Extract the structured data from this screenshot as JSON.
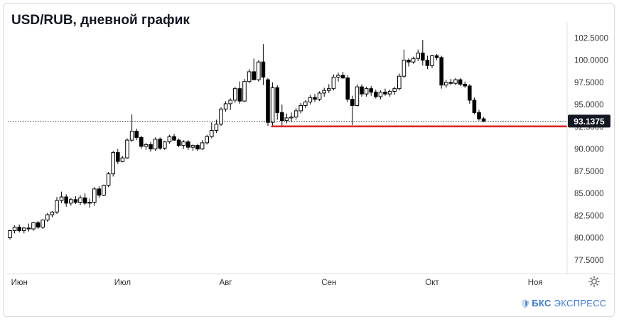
{
  "header": {
    "title": "USD/RUB, дневной график"
  },
  "watermark": {
    "icon": "bks-shield-icon",
    "brand": "БКС",
    "product": "ЭКСПРЕСС",
    "color": "#3d7bd6"
  },
  "settings": {
    "icon": "gear-icon"
  },
  "chart_data": {
    "type": "candlestick",
    "title": "USD/RUB, дневной график",
    "ylim": [
      76.2,
      103.9
    ],
    "y_ticks": [
      "102.5000",
      "100.0000",
      "97.5000",
      "95.0000",
      "92.5000",
      "90.0000",
      "87.5000",
      "85.0000",
      "82.5000",
      "80.0000",
      "77.5000"
    ],
    "y_tick_values": [
      102.5,
      100.0,
      97.5,
      95.0,
      92.5,
      90.0,
      87.5,
      85.0,
      82.5,
      80.0,
      77.5
    ],
    "x_ticks": [
      {
        "label": "Июн",
        "index": 2
      },
      {
        "label": "Июл",
        "index": 24
      },
      {
        "label": "Авг",
        "index": 46
      },
      {
        "label": "Сен",
        "index": 68
      },
      {
        "label": "Окт",
        "index": 90
      },
      {
        "label": "Ноя",
        "index": 112
      }
    ],
    "current_price": 93.1375,
    "current_price_label": "93.1375",
    "support_level": 92.55,
    "support_start_index": 56,
    "colors": {
      "up": "#ffffff",
      "down": "#000000",
      "wick": "#000000",
      "support": "#d9262c",
      "price_tag": "#131722",
      "grid": "#e6e6e6"
    },
    "candles": [
      [
        80.0,
        80.9,
        79.8,
        80.8
      ],
      [
        80.8,
        81.4,
        80.5,
        81.2
      ],
      [
        81.2,
        81.5,
        80.6,
        80.8
      ],
      [
        80.8,
        81.2,
        80.5,
        81.1
      ],
      [
        81.1,
        81.6,
        80.7,
        81.0
      ],
      [
        81.0,
        81.8,
        80.8,
        81.7
      ],
      [
        81.7,
        81.9,
        81.0,
        81.2
      ],
      [
        81.2,
        82.1,
        81.0,
        82.0
      ],
      [
        82.0,
        82.8,
        81.8,
        82.6
      ],
      [
        82.6,
        83.0,
        82.3,
        82.9
      ],
      [
        82.9,
        84.6,
        82.7,
        84.2
      ],
      [
        84.2,
        85.2,
        83.9,
        84.6
      ],
      [
        84.6,
        84.9,
        83.5,
        83.9
      ],
      [
        83.9,
        84.5,
        83.6,
        84.3
      ],
      [
        84.3,
        84.7,
        83.8,
        84.0
      ],
      [
        84.0,
        84.8,
        83.7,
        84.5
      ],
      [
        84.5,
        85.0,
        83.7,
        83.9
      ],
      [
        83.9,
        84.4,
        83.4,
        84.0
      ],
      [
        84.0,
        85.7,
        83.6,
        85.5
      ],
      [
        85.5,
        85.8,
        84.5,
        84.8
      ],
      [
        84.8,
        86.0,
        84.7,
        85.9
      ],
      [
        85.9,
        87.4,
        85.7,
        87.2
      ],
      [
        87.2,
        89.8,
        86.9,
        89.6
      ],
      [
        89.6,
        90.0,
        88.3,
        88.6
      ],
      [
        88.6,
        89.2,
        88.5,
        89.0
      ],
      [
        89.0,
        91.2,
        88.9,
        91.0
      ],
      [
        91.0,
        93.9,
        90.8,
        92.0
      ],
      [
        92.0,
        92.3,
        91.0,
        91.3
      ],
      [
        91.3,
        91.5,
        90.0,
        90.3
      ],
      [
        90.3,
        90.7,
        89.9,
        90.5
      ],
      [
        90.5,
        90.8,
        89.7,
        90.0
      ],
      [
        90.0,
        91.3,
        89.8,
        91.1
      ],
      [
        91.1,
        91.3,
        89.9,
        90.1
      ],
      [
        90.1,
        90.9,
        89.9,
        90.8
      ],
      [
        90.8,
        91.6,
        90.6,
        91.4
      ],
      [
        91.4,
        91.7,
        90.9,
        91.0
      ],
      [
        91.0,
        91.2,
        90.2,
        90.4
      ],
      [
        90.4,
        91.0,
        90.0,
        90.8
      ],
      [
        90.8,
        91.0,
        89.9,
        90.2
      ],
      [
        90.2,
        90.5,
        89.8,
        90.4
      ],
      [
        90.4,
        90.6,
        89.8,
        90.0
      ],
      [
        90.0,
        91.0,
        89.9,
        90.7
      ],
      [
        90.7,
        91.6,
        90.5,
        91.4
      ],
      [
        91.4,
        93.0,
        91.2,
        92.1
      ],
      [
        92.1,
        93.3,
        91.8,
        92.8
      ],
      [
        92.8,
        94.7,
        92.6,
        94.5
      ],
      [
        94.5,
        95.4,
        94.2,
        95.1
      ],
      [
        95.1,
        95.7,
        94.4,
        95.5
      ],
      [
        95.5,
        97.0,
        95.2,
        96.8
      ],
      [
        96.8,
        97.6,
        95.1,
        95.4
      ],
      [
        95.4,
        97.9,
        95.3,
        97.6
      ],
      [
        97.6,
        99.0,
        97.4,
        98.7
      ],
      [
        98.7,
        100.2,
        98.0,
        97.8
      ],
      [
        97.8,
        100.0,
        97.6,
        99.8
      ],
      [
        99.8,
        101.8,
        97.2,
        98.1
      ],
      [
        97.8,
        98.0,
        92.6,
        93.0
      ],
      [
        93.0,
        97.5,
        92.6,
        96.9
      ],
      [
        96.9,
        97.2,
        93.3,
        94.1
      ],
      [
        94.1,
        95.0,
        92.6,
        93.2
      ],
      [
        93.2,
        94.0,
        92.9,
        93.5
      ],
      [
        93.5,
        94.1,
        93.0,
        93.6
      ],
      [
        93.6,
        94.6,
        93.3,
        94.3
      ],
      [
        94.3,
        95.2,
        94.0,
        94.9
      ],
      [
        94.9,
        95.5,
        94.6,
        95.3
      ],
      [
        95.3,
        96.1,
        95.0,
        95.8
      ],
      [
        95.8,
        96.2,
        95.3,
        95.6
      ],
      [
        95.6,
        96.5,
        95.4,
        96.3
      ],
      [
        96.3,
        96.9,
        95.9,
        96.6
      ],
      [
        96.6,
        97.3,
        96.3,
        96.8
      ],
      [
        96.8,
        98.4,
        96.6,
        98.1
      ],
      [
        98.1,
        98.6,
        97.6,
        98.3
      ],
      [
        98.3,
        98.7,
        97.9,
        98.0
      ],
      [
        98.0,
        98.3,
        95.3,
        95.6
      ],
      [
        95.6,
        96.0,
        92.7,
        94.9
      ],
      [
        94.9,
        97.3,
        94.8,
        97.0
      ],
      [
        97.0,
        97.3,
        95.9,
        96.2
      ],
      [
        96.2,
        97.0,
        95.9,
        96.8
      ],
      [
        96.8,
        97.1,
        96.0,
        96.4
      ],
      [
        96.4,
        96.7,
        95.7,
        95.9
      ],
      [
        95.9,
        96.6,
        95.6,
        96.4
      ],
      [
        96.4,
        96.8,
        96.0,
        96.2
      ],
      [
        96.2,
        96.7,
        95.9,
        96.5
      ],
      [
        96.5,
        97.0,
        96.1,
        96.8
      ],
      [
        96.8,
        98.5,
        96.6,
        98.2
      ],
      [
        98.2,
        101.2,
        98.0,
        100.0
      ],
      [
        100.0,
        100.2,
        99.3,
        99.8
      ],
      [
        99.8,
        100.4,
        99.6,
        100.2
      ],
      [
        100.2,
        101.2,
        99.9,
        100.8
      ],
      [
        100.8,
        102.3,
        99.4,
        100.0
      ],
      [
        100.0,
        100.5,
        99.0,
        99.4
      ],
      [
        99.4,
        100.6,
        99.1,
        100.5
      ],
      [
        100.5,
        100.7,
        100.0,
        100.3
      ],
      [
        100.3,
        100.5,
        96.8,
        97.2
      ],
      [
        97.2,
        97.8,
        96.9,
        97.5
      ],
      [
        97.5,
        97.9,
        97.2,
        97.4
      ],
      [
        97.4,
        98.0,
        97.2,
        97.8
      ],
      [
        97.8,
        98.0,
        97.1,
        97.3
      ],
      [
        97.3,
        97.6,
        96.9,
        97.1
      ],
      [
        97.1,
        97.3,
        95.1,
        95.5
      ],
      [
        95.5,
        95.8,
        93.9,
        94.1
      ],
      [
        94.1,
        94.4,
        93.2,
        93.4
      ],
      [
        93.4,
        93.6,
        93.0,
        93.1375
      ]
    ]
  }
}
